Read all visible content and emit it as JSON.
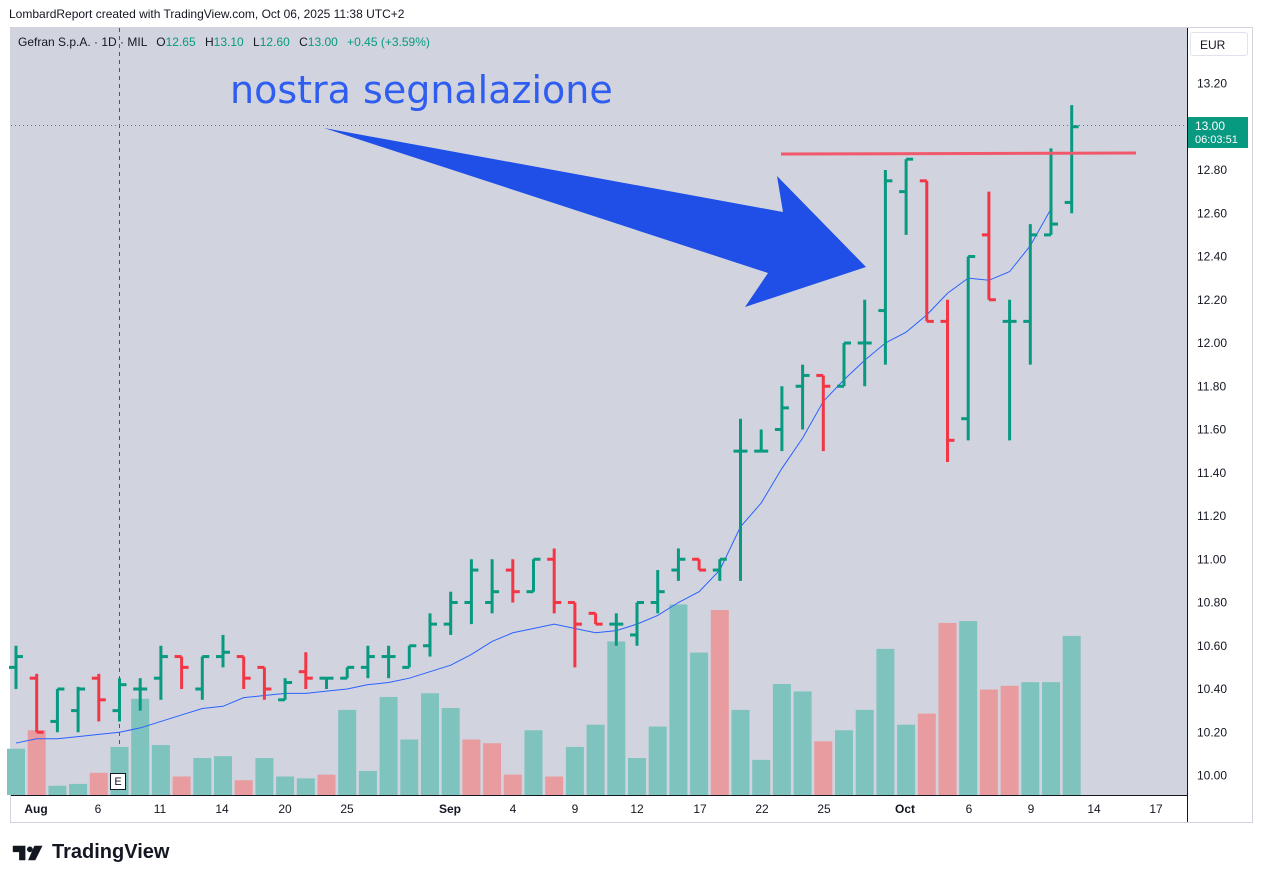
{
  "caption": "LombardReport created with TradingView.com, Oct 06, 2025 11:38 UTC+2",
  "legend": {
    "symbol": "Gefran S.p.A. · 1D · MIL",
    "o_label": "O",
    "o": "12.65",
    "h_label": "H",
    "h": "13.10",
    "l_label": "L",
    "l": "12.60",
    "c_label": "C",
    "c": "13.00",
    "change": "+0.45 (+3.59%)"
  },
  "currency": "EUR",
  "annotation_text": "nostra segnalazione",
  "last_price": {
    "value": "13.00",
    "countdown": "06:03:51"
  },
  "earnings_marker": "E",
  "brand": "TradingView",
  "colors": {
    "up": "#089981",
    "down": "#f23645",
    "ma": "#2962ff",
    "arrow": "#1f4fe6",
    "resistance": "#f0596b",
    "background": "#d1d4de"
  },
  "chart_data": {
    "type": "ohlc",
    "y_ticks": [
      "13.20",
      "12.80",
      "12.60",
      "12.40",
      "12.20",
      "12.00",
      "11.80",
      "11.60",
      "11.40",
      "11.20",
      "11.00",
      "10.80",
      "10.60",
      "10.40",
      "10.20",
      "10.00"
    ],
    "ylim": [
      9.9,
      13.3
    ],
    "x_ticks": [
      "Aug",
      "6",
      "11",
      "14",
      "20",
      "25",
      "Sep",
      "4",
      "9",
      "12",
      "17",
      "22",
      "25",
      "Oct",
      "6",
      "9",
      "14",
      "17"
    ],
    "bars": [
      {
        "o": 10.5,
        "h": 10.6,
        "l": 10.4,
        "c": 10.55
      },
      {
        "o": 10.45,
        "h": 10.47,
        "l": 10.2,
        "c": 10.2
      },
      {
        "o": 10.25,
        "h": 10.4,
        "l": 10.2,
        "c": 10.4
      },
      {
        "o": 10.3,
        "h": 10.41,
        "l": 10.2,
        "c": 10.4
      },
      {
        "o": 10.45,
        "h": 10.47,
        "l": 10.25,
        "c": 10.35
      },
      {
        "o": 10.3,
        "h": 10.45,
        "l": 10.25,
        "c": 10.42
      },
      {
        "o": 10.4,
        "h": 10.45,
        "l": 10.3,
        "c": 10.4
      },
      {
        "o": 10.45,
        "h": 10.6,
        "l": 10.35,
        "c": 10.55
      },
      {
        "o": 10.55,
        "h": 10.55,
        "l": 10.4,
        "c": 10.5
      },
      {
        "o": 10.4,
        "h": 10.55,
        "l": 10.35,
        "c": 10.55
      },
      {
        "o": 10.55,
        "h": 10.65,
        "l": 10.5,
        "c": 10.57
      },
      {
        "o": 10.55,
        "h": 10.55,
        "l": 10.4,
        "c": 10.45
      },
      {
        "o": 10.5,
        "h": 10.5,
        "l": 10.35,
        "c": 10.4
      },
      {
        "o": 10.35,
        "h": 10.45,
        "l": 10.35,
        "c": 10.43
      },
      {
        "o": 10.48,
        "h": 10.57,
        "l": 10.4,
        "c": 10.45
      },
      {
        "o": 10.45,
        "h": 10.45,
        "l": 10.4,
        "c": 10.45
      },
      {
        "o": 10.45,
        "h": 10.5,
        "l": 10.45,
        "c": 10.5
      },
      {
        "o": 10.5,
        "h": 10.6,
        "l": 10.45,
        "c": 10.55
      },
      {
        "o": 10.55,
        "h": 10.6,
        "l": 10.45,
        "c": 10.55
      },
      {
        "o": 10.5,
        "h": 10.6,
        "l": 10.5,
        "c": 10.6
      },
      {
        "o": 10.6,
        "h": 10.75,
        "l": 10.55,
        "c": 10.7
      },
      {
        "o": 10.7,
        "h": 10.85,
        "l": 10.65,
        "c": 10.8
      },
      {
        "o": 10.8,
        "h": 11.0,
        "l": 10.7,
        "c": 10.95
      },
      {
        "o": 10.8,
        "h": 11.0,
        "l": 10.75,
        "c": 10.85
      },
      {
        "o": 10.95,
        "h": 11.0,
        "l": 10.8,
        "c": 10.85
      },
      {
        "o": 10.85,
        "h": 11.0,
        "l": 10.85,
        "c": 11.0
      },
      {
        "o": 11.0,
        "h": 11.05,
        "l": 10.75,
        "c": 10.8
      },
      {
        "o": 10.8,
        "h": 10.8,
        "l": 10.5,
        "c": 10.7
      },
      {
        "o": 10.75,
        "h": 10.75,
        "l": 10.7,
        "c": 10.7
      },
      {
        "o": 10.7,
        "h": 10.75,
        "l": 10.6,
        "c": 10.7
      },
      {
        "o": 10.65,
        "h": 10.8,
        "l": 10.6,
        "c": 10.8
      },
      {
        "o": 10.8,
        "h": 10.95,
        "l": 10.75,
        "c": 10.85
      },
      {
        "o": 10.95,
        "h": 11.05,
        "l": 10.9,
        "c": 11.0
      },
      {
        "o": 11.0,
        "h": 11.0,
        "l": 10.95,
        "c": 10.95
      },
      {
        "o": 10.95,
        "h": 11.0,
        "l": 10.9,
        "c": 11.0
      },
      {
        "o": 11.5,
        "h": 11.65,
        "l": 10.9,
        "c": 11.5
      },
      {
        "o": 11.5,
        "h": 11.6,
        "l": 11.5,
        "c": 11.5
      },
      {
        "o": 11.6,
        "h": 11.8,
        "l": 11.5,
        "c": 11.7
      },
      {
        "o": 11.8,
        "h": 11.9,
        "l": 11.6,
        "c": 11.85
      },
      {
        "o": 11.85,
        "h": 11.85,
        "l": 11.5,
        "c": 11.8
      },
      {
        "o": 11.8,
        "h": 12.0,
        "l": 11.8,
        "c": 12.0
      },
      {
        "o": 12.0,
        "h": 12.2,
        "l": 11.8,
        "c": 12.0
      },
      {
        "o": 12.15,
        "h": 12.8,
        "l": 11.9,
        "c": 12.75
      },
      {
        "o": 12.7,
        "h": 12.85,
        "l": 12.5,
        "c": 12.85
      },
      {
        "o": 12.75,
        "h": 12.75,
        "l": 12.1,
        "c": 12.1
      },
      {
        "o": 12.1,
        "h": 12.2,
        "l": 11.45,
        "c": 11.55
      },
      {
        "o": 11.65,
        "h": 12.4,
        "l": 11.55,
        "c": 12.4
      },
      {
        "o": 12.5,
        "h": 12.7,
        "l": 12.2,
        "c": 12.2
      },
      {
        "o": 12.1,
        "h": 12.2,
        "l": 11.55,
        "c": 12.1
      },
      {
        "o": 12.1,
        "h": 12.55,
        "l": 11.9,
        "c": 12.5
      },
      {
        "o": 12.5,
        "h": 12.9,
        "l": 12.5,
        "c": 12.55
      },
      {
        "o": 12.65,
        "h": 13.1,
        "l": 12.6,
        "c": 13.0
      }
    ],
    "volume_relative": [
      0.25,
      0.35,
      0.05,
      0.06,
      0.12,
      0.26,
      0.52,
      0.27,
      0.1,
      0.2,
      0.21,
      0.08,
      0.2,
      0.1,
      0.09,
      0.11,
      0.46,
      0.13,
      0.53,
      0.3,
      0.55,
      0.47,
      0.3,
      0.28,
      0.11,
      0.35,
      0.1,
      0.26,
      0.38,
      0.83,
      0.2,
      0.37,
      1.03,
      0.77,
      1.0,
      0.46,
      0.19,
      0.6,
      0.56,
      0.29,
      0.35,
      0.46,
      0.79,
      0.38,
      0.44,
      0.93,
      0.94,
      0.57,
      0.59,
      0.61,
      0.61,
      0.86
    ],
    "volume_up": [
      true,
      false,
      true,
      true,
      false,
      true,
      true,
      true,
      false,
      true,
      true,
      false,
      true,
      true,
      true,
      false,
      true,
      true,
      true,
      true,
      true,
      true,
      false,
      false,
      false,
      true,
      false,
      true,
      true,
      true,
      true,
      true,
      true,
      true,
      false,
      true,
      true,
      true,
      true,
      false,
      true,
      true,
      true,
      true,
      false,
      false,
      true,
      false,
      false,
      true,
      true,
      true
    ],
    "ma": [
      10.15,
      10.17,
      10.17,
      10.18,
      10.19,
      10.2,
      10.22,
      10.25,
      10.28,
      10.31,
      10.32,
      10.36,
      10.37,
      10.38,
      10.38,
      10.39,
      10.4,
      10.42,
      10.43,
      10.45,
      10.48,
      10.51,
      10.56,
      10.62,
      10.66,
      10.68,
      10.7,
      10.68,
      10.66,
      10.67,
      10.7,
      10.74,
      10.8,
      10.85,
      10.95,
      11.15,
      11.26,
      11.42,
      11.56,
      11.73,
      11.83,
      11.92,
      12.0,
      12.05,
      12.13,
      12.23,
      12.3,
      12.29,
      12.33,
      12.45,
      12.62
    ]
  }
}
